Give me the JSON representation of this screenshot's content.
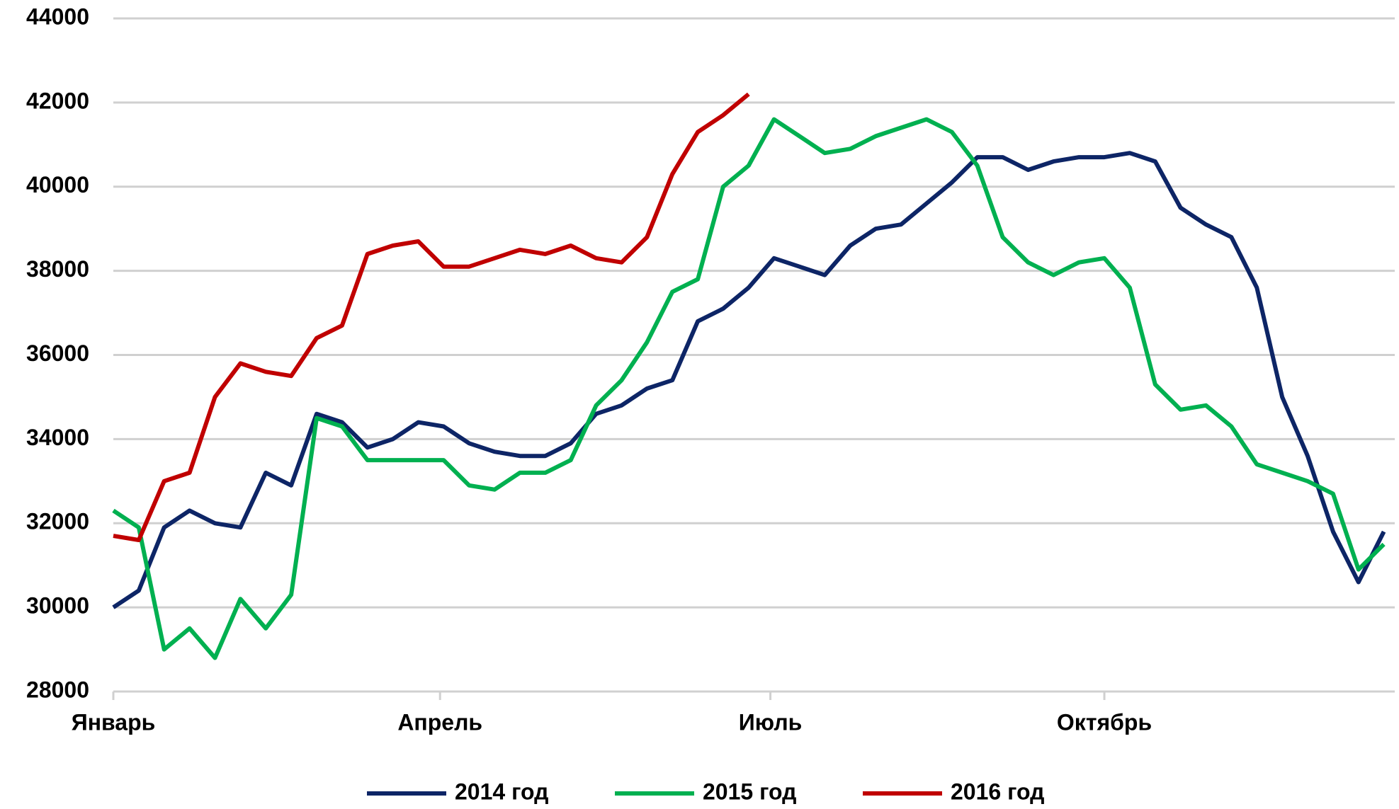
{
  "chart_data": {
    "type": "line",
    "x": [
      0,
      7,
      14,
      21,
      28,
      35,
      42,
      49,
      56,
      63,
      70,
      77,
      84,
      91,
      98,
      105,
      112,
      119,
      126,
      133,
      140,
      147,
      154,
      161,
      168,
      175,
      182,
      189,
      196,
      203,
      210,
      217,
      224,
      231,
      238,
      245,
      252,
      259,
      266,
      273,
      280,
      287,
      294,
      301,
      308,
      315,
      322,
      329,
      336,
      343,
      350
    ],
    "series": [
      {
        "name": "2014 год",
        "color": "#0d2566",
        "values": [
          30000,
          30400,
          31900,
          32300,
          32000,
          31900,
          33200,
          32900,
          34600,
          34400,
          33800,
          34000,
          34400,
          34300,
          33900,
          33700,
          33600,
          33600,
          33900,
          34600,
          34800,
          35200,
          35400,
          36800,
          37100,
          37600,
          38300,
          38100,
          37900,
          38600,
          39000,
          39100,
          39600,
          40100,
          40700,
          40700,
          40400,
          40600,
          40700,
          40700,
          40800,
          40600,
          39500,
          39100,
          38800,
          37600,
          35000,
          33600,
          31800,
          30600,
          31800
        ]
      },
      {
        "name": "2015 год",
        "color": "#00b050",
        "values": [
          32300,
          31900,
          29000,
          29500,
          28800,
          30200,
          29500,
          30300,
          34500,
          34300,
          33500,
          33500,
          33500,
          33500,
          32900,
          32800,
          33200,
          33200,
          33500,
          34800,
          35400,
          36300,
          37500,
          37800,
          40000,
          40500,
          41600,
          41200,
          40800,
          40900,
          41200,
          41400,
          41600,
          41300,
          40500,
          38800,
          38200,
          37900,
          38200,
          38300,
          37600,
          35300,
          34700,
          34800,
          34300,
          33400,
          33200,
          33000,
          32700,
          30900,
          31500
        ]
      },
      {
        "name": "2016 год",
        "color": "#c00000",
        "values": [
          31700,
          31600,
          33000,
          33200,
          35000,
          35800,
          35600,
          35500,
          36400,
          36700,
          38400,
          38600,
          38700,
          38100,
          38100,
          38300,
          38500,
          38400,
          38600,
          38300,
          38200,
          38800,
          40300,
          41300,
          41700,
          42200,
          null,
          null,
          null,
          null,
          null,
          null,
          null,
          null,
          null,
          null,
          null,
          null,
          null,
          null,
          null,
          null,
          null,
          null,
          null,
          null,
          null,
          null,
          null,
          null,
          null
        ]
      }
    ],
    "xlim": [
      0,
      353
    ],
    "xticks": [
      {
        "value": 0,
        "label": "Январь"
      },
      {
        "value": 90,
        "label": "Апрель"
      },
      {
        "value": 181,
        "label": "Июль"
      },
      {
        "value": 273,
        "label": "Октябрь"
      }
    ],
    "ylim": [
      28000,
      44000
    ],
    "yticks": [
      28000,
      30000,
      32000,
      34000,
      36000,
      38000,
      40000,
      42000,
      44000
    ],
    "grid": true,
    "legend": "bottom"
  }
}
